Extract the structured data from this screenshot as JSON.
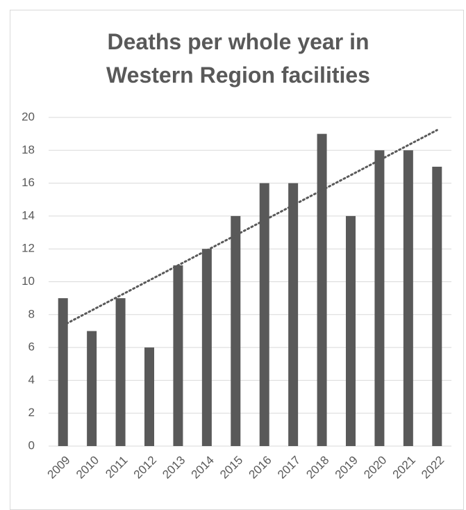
{
  "chart_data": {
    "type": "bar",
    "title": "Deaths per whole year in Western Region facilities",
    "categories": [
      "2009",
      "2010",
      "2011",
      "2012",
      "2013",
      "2014",
      "2015",
      "2016",
      "2017",
      "2018",
      "2019",
      "2020",
      "2021",
      "2022"
    ],
    "values": [
      9,
      7,
      9,
      6,
      11,
      12,
      14,
      16,
      16,
      19,
      14,
      18,
      18,
      17
    ],
    "color": "#595959",
    "ylim": [
      0,
      20
    ],
    "yticks": [
      0,
      2,
      4,
      6,
      8,
      10,
      12,
      14,
      16,
      18,
      20
    ],
    "grid": true,
    "trendline": "linear"
  }
}
